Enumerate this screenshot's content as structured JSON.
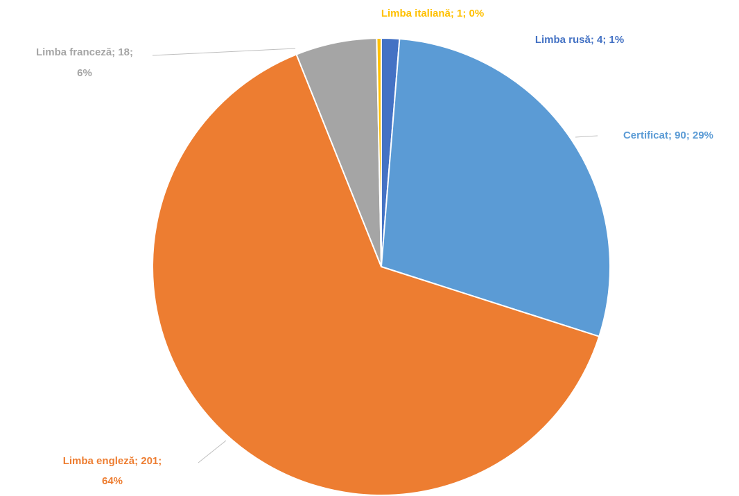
{
  "chart_data": {
    "type": "pie",
    "title": "",
    "slices": [
      {
        "name": "Limba rusă",
        "value": 4,
        "percent": "1%",
        "color": "#4472c4",
        "label": "Limba rusă; 4; 1%"
      },
      {
        "name": "Certificat",
        "value": 90,
        "percent": "29%",
        "color": "#5b9bd5",
        "label": "Certificat; 90; 29%"
      },
      {
        "name": "Limba engleză",
        "value": 201,
        "percent": "64%",
        "color": "#ed7d31",
        "label_lines": [
          "Limba engleză; 201;",
          "64%"
        ]
      },
      {
        "name": "Limba franceză",
        "value": 18,
        "percent": "6%",
        "color": "#a5a5a5",
        "label_lines": [
          "Limba franceză; 18;",
          "6%"
        ]
      },
      {
        "name": "Limba italiană",
        "value": 1,
        "percent": "0%",
        "color": "#ffc000",
        "label": "Limba italiană; 1; 0%"
      }
    ],
    "legend": "none",
    "data_labels": "outside"
  }
}
